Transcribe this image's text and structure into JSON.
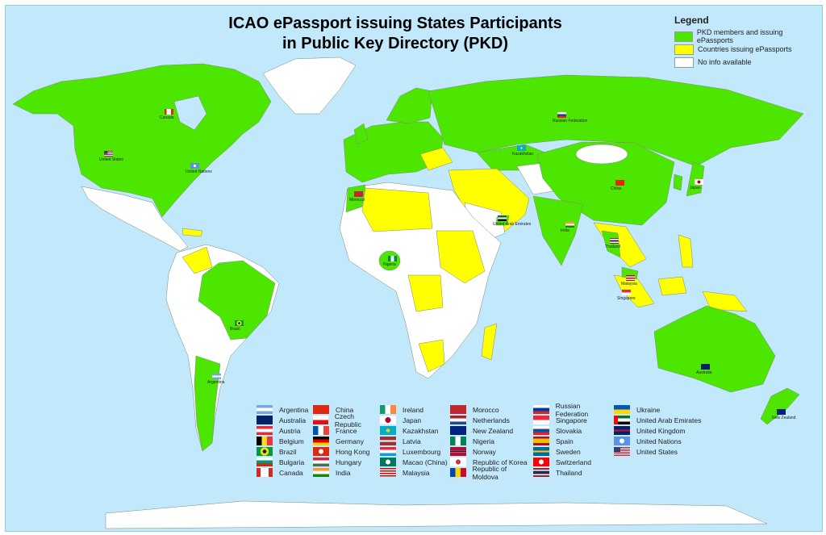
{
  "title_line1": "ICAO ePassport issuing States Participants",
  "title_line2": "in Public Key Directory (PKD)",
  "legend": {
    "heading": "Legend",
    "items": [
      {
        "label": "PKD members and issuing ePassports",
        "color": "#4de600"
      },
      {
        "label": "Countries issuing ePassports",
        "color": "#ffff00"
      },
      {
        "label": "No info available",
        "color": "#ffffff"
      }
    ]
  },
  "colors": {
    "ocean": "#c1e8fb",
    "pkd": "#4de600",
    "issuing": "#ffff00",
    "noinfo": "#ffffff"
  },
  "pkd_participants": [
    [
      {
        "name": "Argentina",
        "flag": "linear-gradient(#75aadb 33%,#fff 33%,#fff 66%,#75aadb 66%)"
      },
      {
        "name": "Australia",
        "flag": "linear-gradient(#012169,#012169)"
      },
      {
        "name": "Austria",
        "flag": "linear-gradient(#ed2939 33%,#fff 33%,#fff 66%,#ed2939 66%)"
      },
      {
        "name": "Belgium",
        "flag": "linear-gradient(90deg,#000 33%,#fdda24 33%,#fdda24 66%,#ef3340 66%)"
      },
      {
        "name": "Brazil",
        "flag": "radial-gradient(circle,#002776 20%,#fedf00 21%,#fedf00 45%,#009c3b 46%)"
      },
      {
        "name": "Bulgaria",
        "flag": "linear-gradient(#fff 33%,#00966e 33%,#00966e 66%,#d62612 66%)"
      },
      {
        "name": "Canada",
        "flag": "linear-gradient(90deg,#d52b1e 25%,#fff 25%,#fff 75%,#d52b1e 75%)"
      }
    ],
    [
      {
        "name": "China",
        "flag": "linear-gradient(#de2910,#de2910)"
      },
      {
        "name": "Czech Republic",
        "flag": "linear-gradient(#fff 50%,#d7141a 50%)"
      },
      {
        "name": "France",
        "flag": "linear-gradient(90deg,#0055a4 33%,#fff 33%,#fff 66%,#ef4135 66%)"
      },
      {
        "name": "Germany",
        "flag": "linear-gradient(#000 33%,#dd0000 33%,#dd0000 66%,#ffce00 66%)"
      },
      {
        "name": "Hong Kong",
        "flag": "radial-gradient(circle,#fff 25%,#de2910 26%)"
      },
      {
        "name": "Hungary",
        "flag": "linear-gradient(#ce2939 33%,#fff 33%,#fff 66%,#477050 66%)"
      },
      {
        "name": "India",
        "flag": "linear-gradient(#ff9933 33%,#fff 33%,#fff 66%,#138808 66%)"
      }
    ],
    [
      {
        "name": "Ireland",
        "flag": "linear-gradient(90deg,#169b62 33%,#fff 33%,#fff 66%,#ff883e 66%)"
      },
      {
        "name": "Japan",
        "flag": "radial-gradient(circle,#bc002d 30%,#fff 31%)"
      },
      {
        "name": "Kazakhstan",
        "flag": "radial-gradient(circle,#fec50c 20%,#00afca 21%)"
      },
      {
        "name": "Latvia",
        "flag": "linear-gradient(#9e3039 40%,#fff 40%,#fff 60%,#9e3039 60%)"
      },
      {
        "name": "Luxembourg",
        "flag": "linear-gradient(#ed2939 33%,#fff 33%,#fff 66%,#00a1de 66%)"
      },
      {
        "name": "Macao (China)",
        "flag": "radial-gradient(circle,#fff 25%,#00785e 26%)"
      },
      {
        "name": "Malaysia",
        "flag": "repeating-linear-gradient(#cc0001 0 1.5px,#fff 1.5px 3px)"
      }
    ],
    [
      {
        "name": "Morocco",
        "flag": "linear-gradient(#c1272d,#c1272d)"
      },
      {
        "name": "Netherlands",
        "flag": "linear-gradient(#ae1c28 33%,#fff 33%,#fff 66%,#21468b 66%)"
      },
      {
        "name": "New Zealand",
        "flag": "linear-gradient(#00247d,#00247d)"
      },
      {
        "name": "Nigeria",
        "flag": "linear-gradient(90deg,#008751 33%,#fff 33%,#fff 66%,#008751 66%)"
      },
      {
        "name": "Norway",
        "flag": "linear-gradient(#ba0c2f 40%,#fff 40%,#00205b 45%,#00205b 55%,#fff 55%,#ba0c2f 60%)"
      },
      {
        "name": "Republic of Korea",
        "flag": "radial-gradient(circle,#cd2e3a 25%,#fff 26%)"
      },
      {
        "name": "Republic of Moldova",
        "flag": "linear-gradient(90deg,#0046ae 33%,#ffd200 33%,#ffd200 66%,#cc092f 66%)"
      }
    ],
    [
      {
        "name": "Russian Federation",
        "flag": "linear-gradient(#fff 33%,#0039a6 33%,#0039a6 66%,#d52b1e 66%)"
      },
      {
        "name": "Singapore",
        "flag": "linear-gradient(#ed2939 50%,#fff 50%)"
      },
      {
        "name": "Slovakia",
        "flag": "linear-gradient(#fff 33%,#0b4ea2 33%,#0b4ea2 66%,#ee1c25 66%)"
      },
      {
        "name": "Spain",
        "flag": "linear-gradient(#aa151b 25%,#f1bf00 25%,#f1bf00 75%,#aa151b 75%)"
      },
      {
        "name": "Sweden",
        "flag": "linear-gradient(#006aa7 40%,#fecc00 40%,#fecc00 60%,#006aa7 60%)"
      },
      {
        "name": "Switzerland",
        "flag": "radial-gradient(circle,#fff 25%,#ff0000 26%)"
      },
      {
        "name": "Thailand",
        "flag": "linear-gradient(#a51931 17%,#fff 17%,#fff 33%,#2d2a4a 33%,#2d2a4a 66%,#fff 66%,#fff 83%,#a51931 83%)"
      }
    ],
    [
      {
        "name": "Ukraine",
        "flag": "linear-gradient(#0057b7 50%,#ffd700 50%)"
      },
      {
        "name": "United Arab Emirates",
        "flag": "linear-gradient(90deg,#ff0000 25%,transparent 25%),linear-gradient(#00732f 33%,#fff 33%,#fff 66%,#000 66%)"
      },
      {
        "name": "United Kingdom",
        "flag": "linear-gradient(#012169 40%,#c8102e 40%,#c8102e 60%,#012169 60%)"
      },
      {
        "name": "United Nations",
        "flag": "radial-gradient(circle,#fff 25%,#5b92e5 26%)"
      },
      {
        "name": "United States",
        "flag": "linear-gradient(90deg,#3c3b6e 40%,transparent 40%) top left/100% 55% no-repeat,repeating-linear-gradient(#b22234 0 1px,#fff 1px 2px)"
      }
    ]
  ],
  "map_markers": [
    {
      "name": "United States",
      "flag": "linear-gradient(90deg,#3c3b6e 40%,transparent 40%) top left/100% 55% no-repeat,repeating-linear-gradient(#b22234 0 1px,#fff 1px 2px)"
    },
    {
      "name": "Canada",
      "flag": "linear-gradient(90deg,#d52b1e 25%,#fff 25%,#fff 75%,#d52b1e 75%)"
    },
    {
      "name": "United Nations",
      "flag": "radial-gradient(circle,#fff 25%,#5b92e5 26%)"
    },
    {
      "name": "Brazil",
      "flag": "radial-gradient(circle,#002776 20%,#fedf00 21%,#fedf00 45%,#009c3b 46%)"
    },
    {
      "name": "Argentina",
      "flag": "linear-gradient(#75aadb 33%,#fff 33%,#fff 66%,#75aadb 66%)"
    },
    {
      "name": "Russian Federation",
      "flag": "linear-gradient(#fff 33%,#0039a6 33%,#0039a6 66%,#d52b1e 66%)"
    },
    {
      "name": "China",
      "flag": "linear-gradient(#de2910,#de2910)"
    },
    {
      "name": "India",
      "flag": "linear-gradient(#ff9933 33%,#fff 33%,#fff 66%,#138808 66%)"
    },
    {
      "name": "Australia",
      "flag": "linear-gradient(#012169,#012169)"
    },
    {
      "name": "New Zealand",
      "flag": "linear-gradient(#00247d,#00247d)"
    },
    {
      "name": "Nigeria",
      "flag": "linear-gradient(90deg,#008751 33%,#fff 33%,#fff 66%,#008751 66%)"
    },
    {
      "name": "Kazakhstan",
      "flag": "radial-gradient(circle,#fec50c 20%,#00afca 21%)"
    },
    {
      "name": "Japan",
      "flag": "radial-gradient(circle,#bc002d 30%,#fff 31%)"
    },
    {
      "name": "United Arab Emirates",
      "flag": "linear-gradient(#00732f 33%,#fff 33%,#fff 66%,#000 66%)"
    },
    {
      "name": "Thailand",
      "flag": "linear-gradient(#a51931 17%,#fff 17%,#fff 33%,#2d2a4a 33%,#2d2a4a 66%,#fff 66%,#fff 83%,#a51931 83%)"
    },
    {
      "name": "Malaysia",
      "flag": "repeating-linear-gradient(#cc0001 0 1.5px,#fff 1.5px 3px)"
    },
    {
      "name": "Singapore",
      "flag": "linear-gradient(#ed2939 50%,#fff 50%)"
    },
    {
      "name": "Morocco",
      "flag": "linear-gradient(#c1272d,#c1272d)"
    }
  ]
}
